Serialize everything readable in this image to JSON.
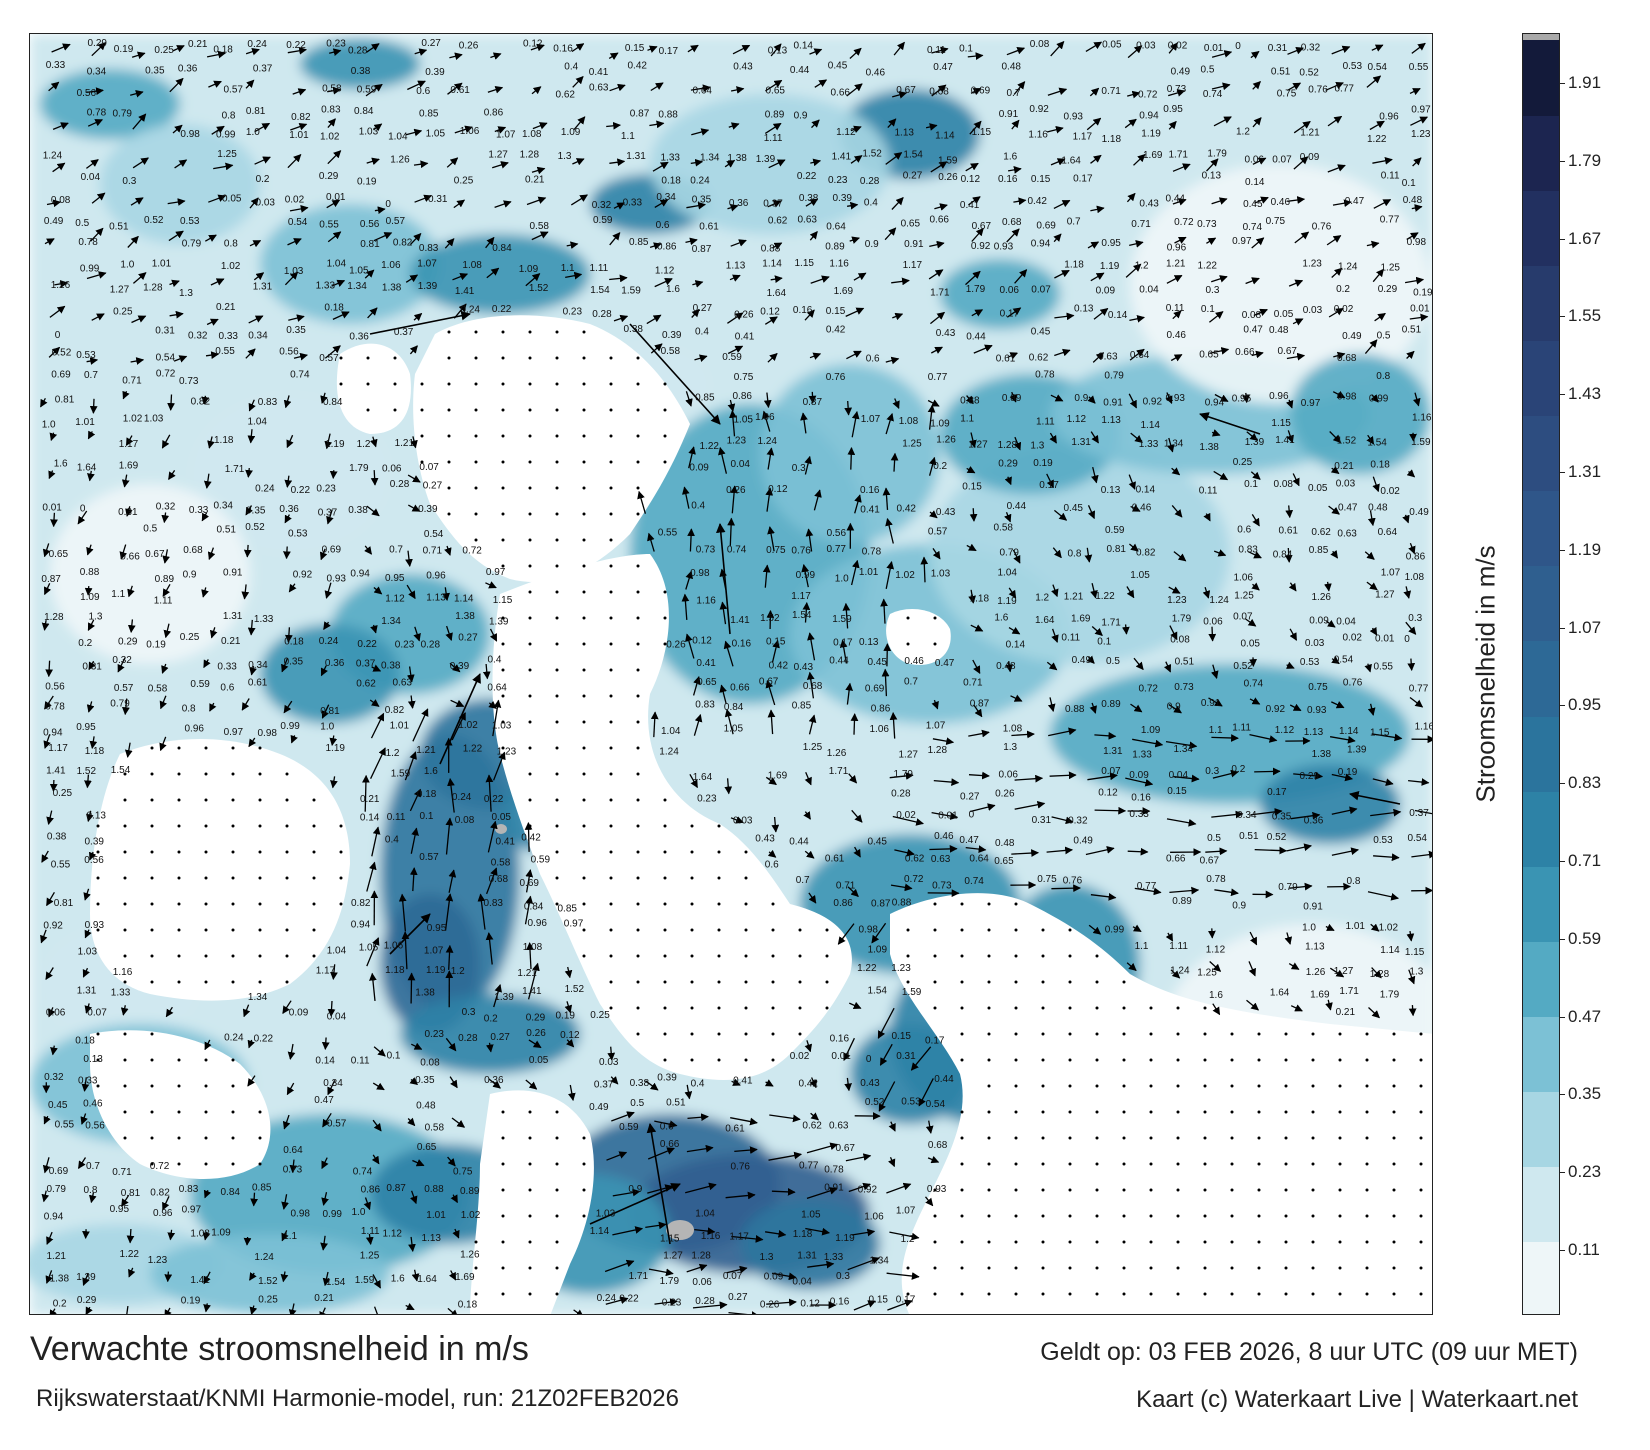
{
  "title": "Verwachte stroomsnelheid in m/s",
  "model_run": "Rijkswaterstaat/KNMI Harmonie-model, run: 21Z02FEB2026",
  "valid_time": "Geldt op: 03 FEB 2026, 8 uur UTC (09 uur MET)",
  "credit": "Kaart (c) Waterkaart Live | Waterkaart.net",
  "colorbar": {
    "title": "Stroomsnelheid in m/s",
    "ticks": [
      "1.91",
      "1.79",
      "1.67",
      "1.55",
      "1.43",
      "1.31",
      "1.19",
      "1.07",
      "0.95",
      "0.83",
      "0.71",
      "0.59",
      "0.47",
      "0.35",
      "0.23",
      "0.11"
    ],
    "colors": [
      "#eef6f8",
      "#cfe8ef",
      "#a7d6e3",
      "#7cc1d5",
      "#54aac3",
      "#3a94b3",
      "#2d82a6",
      "#2b749d",
      "#2d6996",
      "#2f5f8f",
      "#2f5689",
      "#2d4d80",
      "#2a4477",
      "#273b6c",
      "#223060",
      "#1c2550",
      "#131a3a"
    ]
  },
  "map": {
    "background_color": "#ffffff",
    "speed_labels": [
      "0.29",
      "0.19",
      "0.25",
      "0.21",
      "0.18",
      "0.24",
      "0.22",
      "0.23",
      "0.28",
      "0.27",
      "0.26",
      "0.12",
      "0.16",
      "0.15",
      "0.17",
      "0.13",
      "0.14",
      "0.11",
      "0.1",
      "0.08",
      "0.05",
      "0.03",
      "0.02",
      "0.01",
      "0",
      "0.31",
      "0.32",
      "0.33",
      "0.34",
      "0.35",
      "0.36",
      "0.37",
      "0.38",
      "0.39",
      "0.4",
      "0.41",
      "0.42",
      "0.43",
      "0.44",
      "0.45",
      "0.46",
      "0.47",
      "0.48",
      "0.49",
      "0.5",
      "0.51",
      "0.52",
      "0.53",
      "0.54",
      "0.55",
      "0.56",
      "0.57",
      "0.58",
      "0.59",
      "0.6",
      "0.61",
      "0.62",
      "0.63",
      "0.64",
      "0.65",
      "0.66",
      "0.67",
      "0.68",
      "0.69",
      "0.7",
      "0.71",
      "0.72",
      "0.73",
      "0.74",
      "0.75",
      "0.76",
      "0.77",
      "0.78",
      "0.79",
      "0.8",
      "0.81",
      "0.82",
      "0.83",
      "0.84",
      "0.85",
      "0.86",
      "0.87",
      "0.88",
      "0.89",
      "0.9",
      "0.91",
      "0.92",
      "0.93",
      "0.94",
      "0.95",
      "0.96",
      "0.97",
      "0.98",
      "0.99",
      "1.0",
      "1.01",
      "1.02",
      "1.03",
      "1.04",
      "1.05",
      "1.06",
      "1.07",
      "1.08",
      "1.09",
      "1.1",
      "1.11",
      "1.12",
      "1.13",
      "1.14",
      "1.15",
      "1.16",
      "1.17",
      "1.18",
      "1.19",
      "1.2",
      "1.21",
      "1.22",
      "1.23",
      "1.24",
      "1.25",
      "1.26",
      "1.27",
      "1.28",
      "1.3",
      "1.31",
      "1.33",
      "1.34",
      "1.38",
      "1.39",
      "1.41",
      "1.52",
      "1.54",
      "1.59",
      "1.6",
      "1.64",
      "1.69",
      "1.71",
      "1.79",
      "0.06",
      "0.07",
      "0.09",
      "0.04",
      "0.3",
      "0.2"
    ]
  }
}
